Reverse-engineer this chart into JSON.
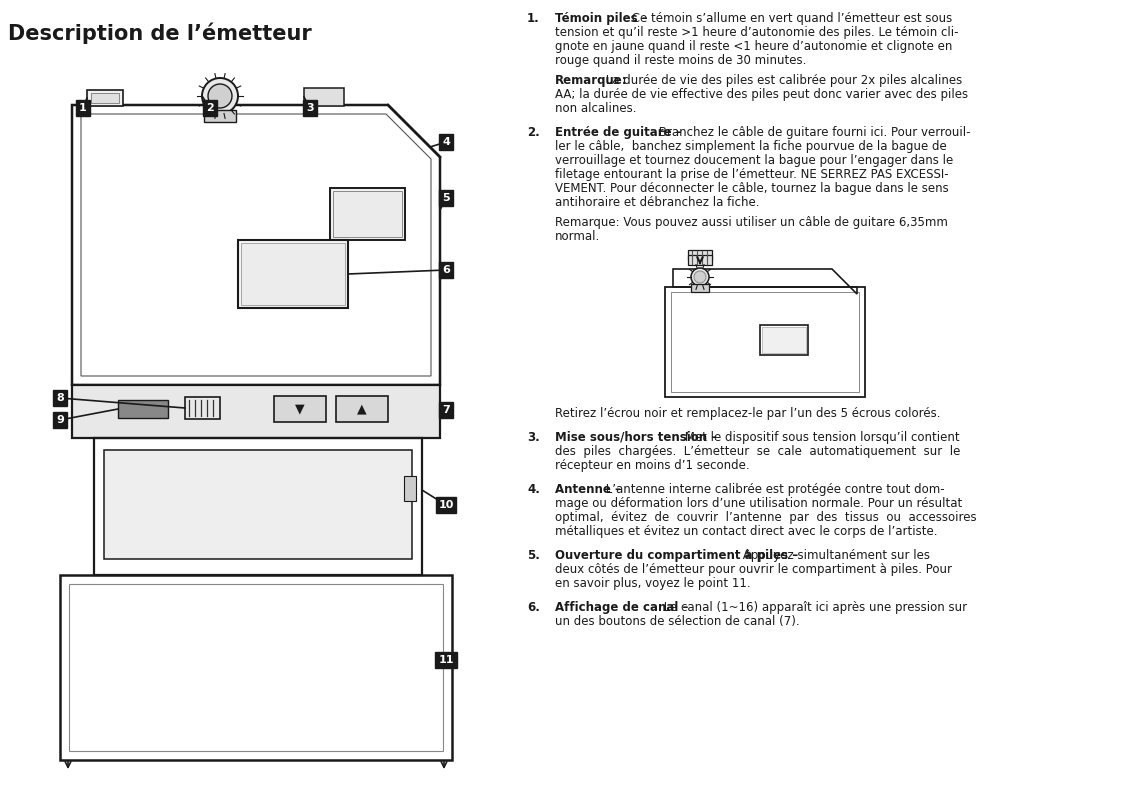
{
  "title": "Description de l’émetteur",
  "bg_color": "#ffffff",
  "text_color": "#000000",
  "items": [
    {
      "number": "1.",
      "bold": "Témoin piles –",
      "text": " Ce témoin s’allume en vert quand l’émetteur est sous tension et qu’il reste >1 heure d’autonomie des piles. Le témoin cli-gnote en jaune quand il reste <1 heure d’autonomie et clignote en rouge quand il reste moins de 30 minutes."
    },
    {
      "number": "",
      "bold": "Remarque:",
      "text": " La durée de vie des piles est calibrée pour 2x piles alcalines AA; la durée de vie effective des piles peut donc varier avec des piles non alcalines.",
      "remarque": true
    },
    {
      "number": "2.",
      "bold": "Entrée de guitare –",
      "text": " Branchez le câble de guitare fourni ici. Pour verrouil-ler le câble, banchez simplement la fiche pourvue de la bague de verrouillage et tournez doucement la bague pour l’engager dans le filetage entourant la prise de l’émetteur. NE SERREZ PAS EXCESSI-VEMENT. Pour déconnecter le câble, tournez la bague dans le sens antihoraire et débranchez la fiche."
    },
    {
      "number": "",
      "bold": "",
      "text": "Remarque: Vous pouvez aussi utiliser un câble de guitare 6,35mm normal.",
      "remarque2": true
    },
    {
      "number": "3.",
      "bold": "Mise sous/hors tension –",
      "text": " Met le dispositif sous tension lorsqu’il contient des piles chargées. L’émetteur se cale automatiquement sur le récepteur en moins d’1 seconde."
    },
    {
      "number": "4.",
      "bold": "Antenne –",
      "text": " L’antenne interne calibrée est protégée contre tout dom-mage ou déformation lors d’une utilisation normale. Pour un résultat optimal, évitez de couvrir l’antenne par des tissus ou accessoires métalliques et évitez un contact direct avec le corps de l’artiste."
    },
    {
      "number": "5.",
      "bold": "Ouverture du compartiment à piles –",
      "text": " Appuyez simultanément sur les deux côtés de l’émetteur pour ouvrir le compartiment à piles. Pour en savoir plus, voyez le point 11."
    },
    {
      "number": "6.",
      "bold": "Affichage de canal –",
      "text": " Le canal (1~16) apparaît ici après une pression sur un des boutons de sélection de canal (7)."
    }
  ],
  "retirez_text": "Retirez l’écrou noir et remplacez-le par l’un des 5 écrous colorés."
}
